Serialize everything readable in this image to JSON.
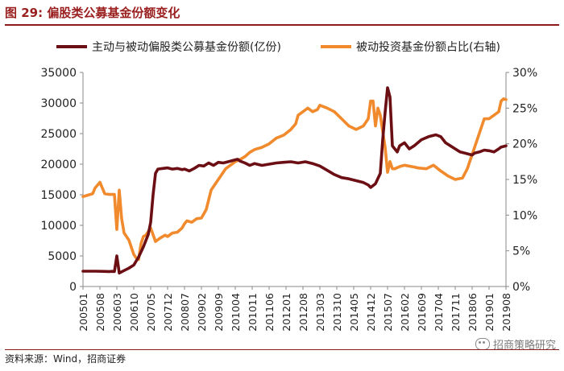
{
  "header": {
    "title": "图 29:  偏股类公募基金份额变化"
  },
  "footer": {
    "source": "资料来源：Wind，招商证券"
  },
  "watermark": {
    "text": "招商策略研究",
    "icon": "wechat-icon"
  },
  "chart_data": {
    "type": "line",
    "title": "",
    "xlabel": "",
    "ylabel": "",
    "ylim": [
      0,
      35000
    ],
    "y_ticks": [
      "0",
      "5000",
      "10000",
      "15000",
      "20000",
      "25000",
      "30000",
      "35000"
    ],
    "y2lim": [
      0,
      30
    ],
    "y2_ticks": [
      "0%",
      "5%",
      "10%",
      "15%",
      "20%",
      "25%",
      "30%"
    ],
    "x_tick_labels": [
      "200501",
      "200508",
      "200603",
      "200610",
      "200705",
      "200712",
      "200807",
      "200902",
      "200909",
      "201004",
      "201011",
      "201106",
      "201201",
      "201208",
      "201303",
      "201310",
      "201405",
      "201412",
      "201507",
      "201602",
      "201609",
      "201704",
      "201711",
      "201806",
      "201901",
      "201908"
    ],
    "legend_position": "top",
    "colors": {
      "series1": "#6b0f14",
      "series2": "#f08a2c",
      "title": "#9a1f1f"
    },
    "series": [
      {
        "name": "主动与被动偏股类公募基金份额(亿份)",
        "axis": "left",
        "points": [
          [
            "200501",
            2500
          ],
          [
            "200506",
            2500
          ],
          [
            "200512",
            2450
          ],
          [
            "200601",
            2480
          ],
          [
            "200602",
            2450
          ],
          [
            "200603",
            5000
          ],
          [
            "200604",
            2200
          ],
          [
            "200606",
            2600
          ],
          [
            "200608",
            3000
          ],
          [
            "200610",
            3500
          ],
          [
            "200612",
            4800
          ],
          [
            "200702",
            6500
          ],
          [
            "200704",
            8500
          ],
          [
            "200705",
            10500
          ],
          [
            "200706",
            15000
          ],
          [
            "200707",
            18500
          ],
          [
            "200708",
            19200
          ],
          [
            "200710",
            19300
          ],
          [
            "200712",
            19400
          ],
          [
            "200802",
            19200
          ],
          [
            "200804",
            19300
          ],
          [
            "200806",
            19100
          ],
          [
            "200807",
            19200
          ],
          [
            "200809",
            18900
          ],
          [
            "200811",
            19300
          ],
          [
            "200901",
            19800
          ],
          [
            "200903",
            19700
          ],
          [
            "200905",
            20200
          ],
          [
            "200907",
            19800
          ],
          [
            "200909",
            20300
          ],
          [
            "200911",
            20200
          ],
          [
            "201001",
            20400
          ],
          [
            "201003",
            20600
          ],
          [
            "201005",
            20800
          ],
          [
            "201006",
            20500
          ],
          [
            "201008",
            20200
          ],
          [
            "201010",
            19800
          ],
          [
            "201012",
            20100
          ],
          [
            "201103",
            19800
          ],
          [
            "201106",
            20000
          ],
          [
            "201109",
            20200
          ],
          [
            "201112",
            20300
          ],
          [
            "201203",
            20400
          ],
          [
            "201206",
            20200
          ],
          [
            "201209",
            20400
          ],
          [
            "201212",
            20100
          ],
          [
            "201303",
            19700
          ],
          [
            "201306",
            19000
          ],
          [
            "201309",
            18300
          ],
          [
            "201312",
            17800
          ],
          [
            "201403",
            17600
          ],
          [
            "201406",
            17300
          ],
          [
            "201409",
            17000
          ],
          [
            "201411",
            16600
          ],
          [
            "201412",
            16200
          ],
          [
            "201502",
            16800
          ],
          [
            "201504",
            18500
          ],
          [
            "201505",
            24000
          ],
          [
            "201506",
            28500
          ],
          [
            "201507",
            32500
          ],
          [
            "201508",
            31000
          ],
          [
            "201509",
            23000
          ],
          [
            "201511",
            22000
          ],
          [
            "201512",
            23000
          ],
          [
            "201602",
            23500
          ],
          [
            "201604",
            22500
          ],
          [
            "201606",
            23000
          ],
          [
            "201609",
            24000
          ],
          [
            "201612",
            24500
          ],
          [
            "201703",
            24800
          ],
          [
            "201705",
            24500
          ],
          [
            "201707",
            23500
          ],
          [
            "201709",
            23000
          ],
          [
            "201711",
            22500
          ],
          [
            "201801",
            22000
          ],
          [
            "201803",
            21800
          ],
          [
            "201806",
            21500
          ],
          [
            "201807",
            21800
          ],
          [
            "201809",
            22000
          ],
          [
            "201811",
            22300
          ],
          [
            "201901",
            22200
          ],
          [
            "201903",
            22000
          ],
          [
            "201905",
            22500
          ],
          [
            "201906",
            22800
          ],
          [
            "201908",
            23000
          ]
        ]
      },
      {
        "name": "被动投资基金份额占比(右轴)",
        "axis": "right",
        "points": [
          [
            "200501",
            12.6
          ],
          [
            "200503",
            12.8
          ],
          [
            "200505",
            13.0
          ],
          [
            "200506",
            13.8
          ],
          [
            "200508",
            14.6
          ],
          [
            "200510",
            13.0
          ],
          [
            "200512",
            12.9
          ],
          [
            "200602",
            12.9
          ],
          [
            "200603",
            8.0
          ],
          [
            "200604",
            13.5
          ],
          [
            "200605",
            9.5
          ],
          [
            "200606",
            7.5
          ],
          [
            "200608",
            6.5
          ],
          [
            "200609",
            5.5
          ],
          [
            "200610",
            4.5
          ],
          [
            "200611",
            4.0
          ],
          [
            "200612",
            3.8
          ],
          [
            "200701",
            6.0
          ],
          [
            "200702",
            7.0
          ],
          [
            "200703",
            7.2
          ],
          [
            "200705",
            8.2
          ],
          [
            "200707",
            6.3
          ],
          [
            "200709",
            6.8
          ],
          [
            "200711",
            7.2
          ],
          [
            "200712",
            7.0
          ],
          [
            "200802",
            7.5
          ],
          [
            "200804",
            7.6
          ],
          [
            "200806",
            8.2
          ],
          [
            "200807",
            8.8
          ],
          [
            "200808",
            9.2
          ],
          [
            "200810",
            9.0
          ],
          [
            "200812",
            9.5
          ],
          [
            "200902",
            9.6
          ],
          [
            "200904",
            10.8
          ],
          [
            "200906",
            13.5
          ],
          [
            "200908",
            14.5
          ],
          [
            "200910",
            15.5
          ],
          [
            "200912",
            16.5
          ],
          [
            "201002",
            17.0
          ],
          [
            "201004",
            17.5
          ],
          [
            "201006",
            17.8
          ],
          [
            "201008",
            18.2
          ],
          [
            "201010",
            18.8
          ],
          [
            "201012",
            19.2
          ],
          [
            "201103",
            19.5
          ],
          [
            "201106",
            20.0
          ],
          [
            "201109",
            20.8
          ],
          [
            "201112",
            21.2
          ],
          [
            "201203",
            22.0
          ],
          [
            "201205",
            22.8
          ],
          [
            "201206",
            24.0
          ],
          [
            "201208",
            24.5
          ],
          [
            "201210",
            25.0
          ],
          [
            "201212",
            24.5
          ],
          [
            "201302",
            24.8
          ],
          [
            "201303",
            25.4
          ],
          [
            "201306",
            25.0
          ],
          [
            "201309",
            24.5
          ],
          [
            "201312",
            23.5
          ],
          [
            "201403",
            22.5
          ],
          [
            "201406",
            22.0
          ],
          [
            "201409",
            22.5
          ],
          [
            "201411",
            23.5
          ],
          [
            "201412",
            26.0
          ],
          [
            "201501",
            26.0
          ],
          [
            "201502",
            22.5
          ],
          [
            "201503",
            25.0
          ],
          [
            "201504",
            24.0
          ],
          [
            "201506",
            19.5
          ],
          [
            "201507",
            16.0
          ],
          [
            "201508",
            17.5
          ],
          [
            "201509",
            16.5
          ],
          [
            "201510",
            16.5
          ],
          [
            "201512",
            16.8
          ],
          [
            "201602",
            17.0
          ],
          [
            "201605",
            16.8
          ],
          [
            "201608",
            16.6
          ],
          [
            "201611",
            16.5
          ],
          [
            "201702",
            17.0
          ],
          [
            "201705",
            16.2
          ],
          [
            "201708",
            15.5
          ],
          [
            "201711",
            15.0
          ],
          [
            "201802",
            15.2
          ],
          [
            "201804",
            16.5
          ],
          [
            "201806",
            18.5
          ],
          [
            "201809",
            21.5
          ],
          [
            "201811",
            23.5
          ],
          [
            "201901",
            23.5
          ],
          [
            "201903",
            24.0
          ],
          [
            "201905",
            24.5
          ],
          [
            "201906",
            26.0
          ],
          [
            "201907",
            26.3
          ],
          [
            "201908",
            26.2
          ]
        ]
      }
    ]
  }
}
